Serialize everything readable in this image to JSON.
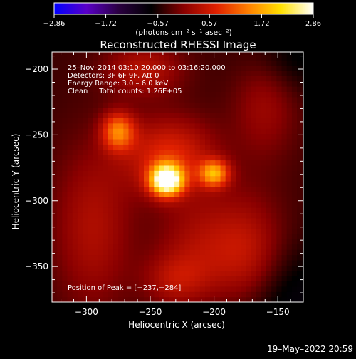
{
  "chart_data": {
    "type": "heatmap",
    "title": "Reconstructed RHESSI Image",
    "xlabel": "Heliocentric X (arcsec)",
    "ylabel": "Heliocentric Y (arcsec)",
    "xlim": [
      -327,
      -130
    ],
    "ylim": [
      -377,
      -187
    ],
    "x_ticks": [
      {
        "value": -300,
        "label": "−300"
      },
      {
        "value": -250,
        "label": "−250"
      },
      {
        "value": -200,
        "label": "−200"
      },
      {
        "value": -150,
        "label": "−150"
      }
    ],
    "y_ticks": [
      {
        "value": -200,
        "label": "−200"
      },
      {
        "value": -250,
        "label": "−250"
      },
      {
        "value": -300,
        "label": "−300"
      },
      {
        "value": -350,
        "label": "−350"
      }
    ],
    "colorbar": {
      "min": -2.86,
      "max": 2.86,
      "tick_values": [
        -2.86,
        -1.72,
        -0.57,
        0.57,
        1.72,
        2.86
      ],
      "tick_labels": [
        "−2.86",
        "−1.72",
        "−0.57",
        "0.57",
        "1.72",
        "2.86"
      ],
      "unit_label": "(photons cm⁻² s⁻¹ asec⁻²)",
      "colors": [
        "#0000ff",
        "#5a00c8",
        "#2a0040",
        "#000000",
        "#8a0000",
        "#e02000",
        "#ff8000",
        "#ffe000",
        "#ffffff"
      ]
    },
    "annotations": {
      "line1": "25–Nov–2014 03:10:20.000 to 03:16:20.000",
      "line2": "Detectors: 3F 6F 9F, Att 0",
      "line3": "Energy Range: 3.0 – 6.0 keV",
      "line4": "Clean     Total counts: 1.26E+05",
      "peak": "Position of Peak = [−237,−284]"
    },
    "peak": {
      "x": -237,
      "y": -284
    },
    "sources": [
      {
        "x": -237,
        "y": -284,
        "amp": 2.86,
        "sx": 9,
        "sy": 8
      },
      {
        "x": -200,
        "y": -279,
        "amp": 1.5,
        "sx": 8,
        "sy": 7
      },
      {
        "x": -275,
        "y": -247,
        "amp": 1.3,
        "sx": 9,
        "sy": 10
      },
      {
        "x": -235,
        "y": -265,
        "amp": 0.9,
        "sx": 25,
        "sy": 20
      },
      {
        "x": -255,
        "y": -200,
        "amp": 0.6,
        "sx": 22,
        "sy": 14
      },
      {
        "x": -175,
        "y": -345,
        "amp": 0.8,
        "sx": 22,
        "sy": 32
      },
      {
        "x": -295,
        "y": -320,
        "amp": 0.55,
        "sx": 22,
        "sy": 45
      },
      {
        "x": -215,
        "y": -335,
        "amp": 0.45,
        "sx": 22,
        "sy": 30
      },
      {
        "x": -160,
        "y": -225,
        "amp": 0.45,
        "sx": 18,
        "sy": 30
      },
      {
        "x": -230,
        "y": -360,
        "amp": 0.5,
        "sx": 18,
        "sy": 14
      }
    ],
    "background_level": 0.25,
    "grid": false
  },
  "footer": {
    "timestamp": "19–May–2022 20:59"
  }
}
